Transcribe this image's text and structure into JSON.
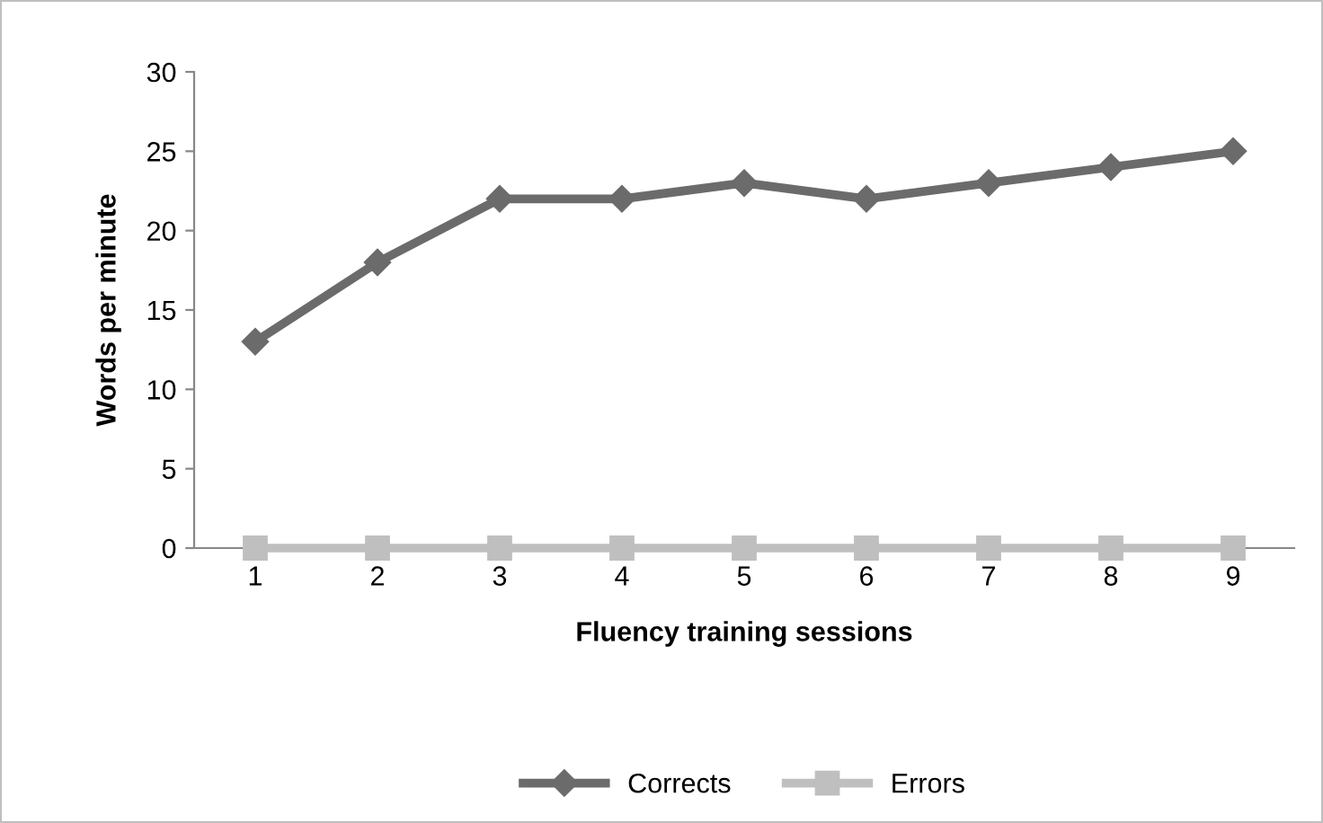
{
  "chart_data": {
    "type": "line",
    "xlabel": "Fluency training sessions",
    "ylabel": "Words per minute",
    "categories": [
      "1",
      "2",
      "3",
      "4",
      "5",
      "6",
      "7",
      "8",
      "9"
    ],
    "series": [
      {
        "name": "Corrects",
        "color": "#6b6b6b",
        "marker": "diamond",
        "values": [
          13,
          18,
          22,
          22,
          23,
          22,
          23,
          24,
          25
        ]
      },
      {
        "name": "Errors",
        "color": "#bfbfbf",
        "marker": "square",
        "values": [
          0,
          0,
          0,
          0,
          0,
          0,
          0,
          0,
          0
        ]
      }
    ],
    "ylim": [
      0,
      30
    ],
    "yticks": [
      0,
      5,
      10,
      15,
      20,
      25,
      30
    ],
    "grid": false,
    "legend": "bottom",
    "line_style": "solid"
  }
}
